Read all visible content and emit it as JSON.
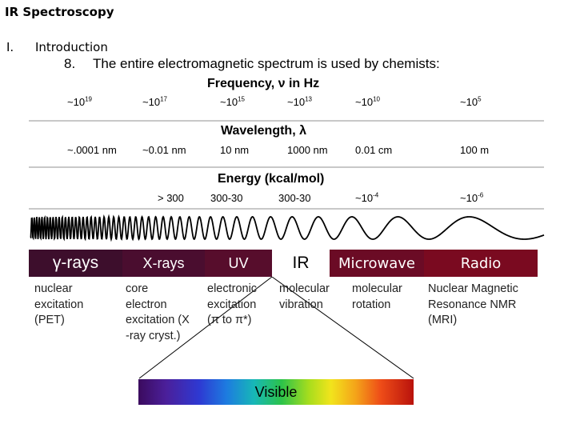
{
  "header": {
    "title": "IR Spectroscopy"
  },
  "section": {
    "number": "I.",
    "title": "Introduction"
  },
  "point": {
    "number": "8.",
    "text": "The entire electromagnetic spectrum is used by chemists:"
  },
  "frequency": {
    "title": "Frequency, ν in Hz",
    "ticks": [
      {
        "base": "~10",
        "exp": "19"
      },
      {
        "base": "~10",
        "exp": "17"
      },
      {
        "base": "~10",
        "exp": "15"
      },
      {
        "base": "~10",
        "exp": "13"
      },
      {
        "base": "~10",
        "exp": "10"
      },
      {
        "base": "~10",
        "exp": "5"
      }
    ]
  },
  "wavelength": {
    "title": "Wavelength, λ",
    "ticks": [
      "~.0001 nm",
      "~0.01 nm",
      "10 nm",
      "1000 nm",
      "0.01 cm",
      "100 m"
    ]
  },
  "energy": {
    "title": "Energy (kcal/mol)",
    "ticks": [
      {
        "base": "> 300",
        "exp": ""
      },
      {
        "base": "300-30",
        "exp": ""
      },
      {
        "base": "300-30",
        "exp": ""
      },
      {
        "base": "~10",
        "exp": "-4"
      },
      {
        "base": "~10",
        "exp": "-6"
      }
    ]
  },
  "bands": [
    {
      "label": "γ-rays",
      "color": "#3d0e2c"
    },
    {
      "label": "X-rays",
      "color": "#4a0d2f"
    },
    {
      "label": "UV",
      "color": "#570d2c"
    },
    {
      "label": "IR",
      "color": "#ffffff"
    },
    {
      "label": "Microwave",
      "color": "#6b0b25"
    },
    {
      "label": "Radio",
      "color": "#7a0a20"
    }
  ],
  "descriptions": [
    "nuclear\nexcitation\n(PET)",
    "core\nelectron\nexcitation (X\n-ray cryst.)",
    "electronic\nexcitation\n(π to π*)",
    "molecular\nvibration",
    "molecular\nrotation",
    "Nuclear Magnetic\nResonance  NMR\n(MRI)"
  ],
  "visible": {
    "label": "Visible"
  }
}
